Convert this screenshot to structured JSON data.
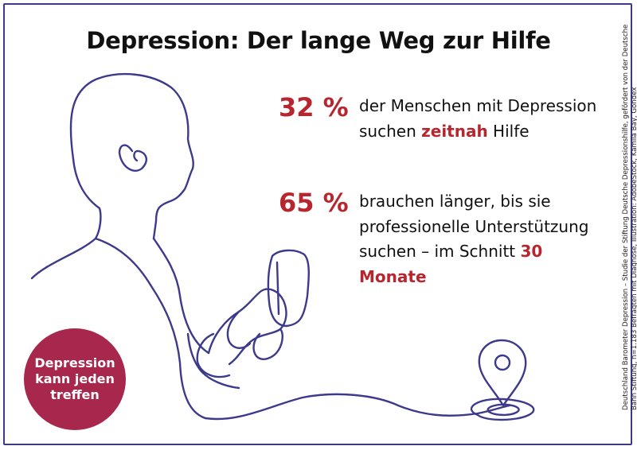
{
  "title": "Depression: Der lange Weg zur Hilfe",
  "stats": [
    {
      "percent": "32 %",
      "text_before": "der Menschen mit Depression suchen ",
      "highlight": "zeitnah",
      "text_after": " Hilfe"
    },
    {
      "percent": "65 %",
      "text_before": "brauchen länger, bis sie professionelle Unterstützung suchen – im Schnitt ",
      "highlight": "30 Monate",
      "text_after": ""
    }
  ],
  "badge": "Depression kann jeden treffen",
  "source": "Deutschland Barometer Depression – Studie der Stiftung Deutsche Depressionshilfe, gefördert von der Deutsche Bahn Stiftung, n=1.183 Befragten mit Diagnose, Illustration: AdobeStock, Kamila Bay, Gondex",
  "colors": {
    "accent_red": "#b7252e",
    "badge": "#a8284d",
    "line_art": "#3d3a8c"
  },
  "icons": [
    "person-with-phone-line-illustration",
    "map-pin-icon"
  ]
}
